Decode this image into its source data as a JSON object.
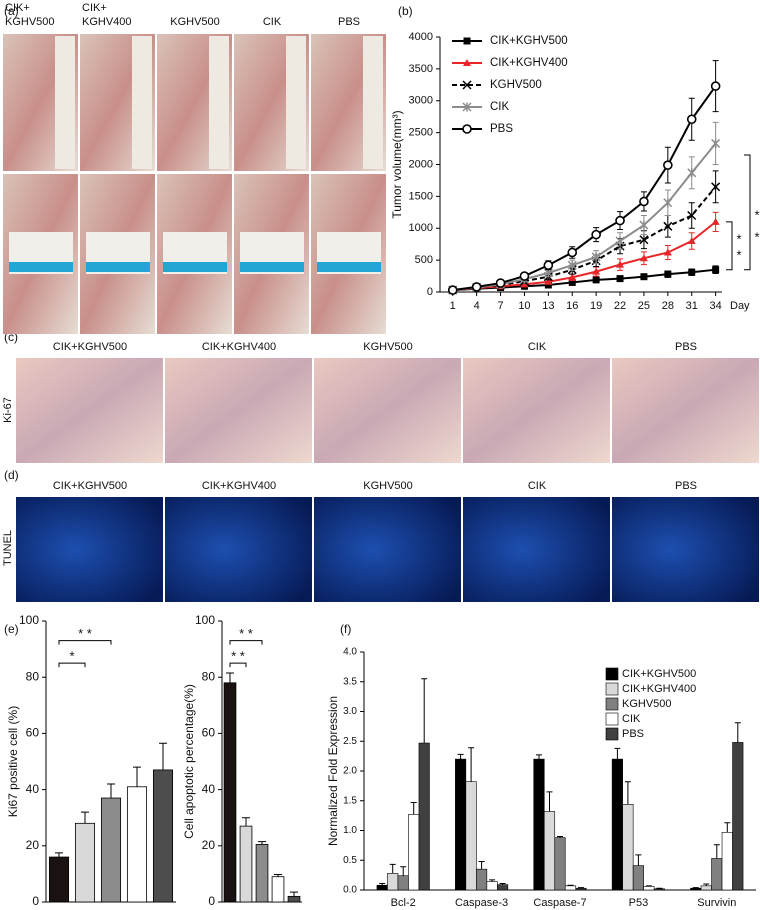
{
  "figure_a": {
    "label": "(a)",
    "columns": [
      [
        "CIK+",
        "KGHV500"
      ],
      [
        "CIK+",
        "KGHV400"
      ],
      [
        "KGHV500"
      ],
      [
        "CIK"
      ],
      [
        "PBS"
      ]
    ]
  },
  "figure_c": {
    "label": "(c)",
    "row_label": "Ki-67",
    "columns": [
      "CIK+KGHV500",
      "CIK+KGHV400",
      "KGHV500",
      "CIK",
      "PBS"
    ]
  },
  "figure_d": {
    "label": "(d)",
    "row_label": "TUNEL",
    "columns": [
      "CIK+KGHV500",
      "CIK+KGHV400",
      "KGHV500",
      "CIK",
      "PBS"
    ]
  },
  "chart_data": [
    {
      "type": "line",
      "label": "(b)",
      "ylabel": "Tumor volume(mm³)",
      "xlabel": "Day",
      "x": [
        1,
        4,
        7,
        10,
        13,
        16,
        19,
        22,
        25,
        28,
        31,
        34
      ],
      "xlim": [
        -0.6,
        34.8
      ],
      "xticks": [
        1,
        4,
        7,
        10,
        13,
        16,
        19,
        22,
        25,
        28,
        31,
        34
      ],
      "ylim": [
        0,
        4000
      ],
      "yticks": [
        0,
        500,
        1000,
        1500,
        2000,
        2500,
        3000,
        3500,
        4000
      ],
      "grid": false,
      "legend": "upper left",
      "series": [
        {
          "name": "CIK+KGHV500",
          "color": "#000000",
          "marker": "square",
          "line_style": "solid",
          "values": [
            30,
            50,
            70,
            90,
            110,
            150,
            190,
            210,
            240,
            280,
            310,
            350
          ],
          "errors": [
            10,
            15,
            15,
            20,
            25,
            30,
            35,
            40,
            40,
            50,
            50,
            60
          ]
        },
        {
          "name": "CIK+KGHV400",
          "color": "#e8262a",
          "marker": "triangle",
          "line_style": "solid",
          "values": [
            30,
            60,
            90,
            120,
            160,
            230,
            320,
            430,
            530,
            620,
            800,
            1100
          ],
          "errors": [
            10,
            15,
            20,
            25,
            35,
            50,
            70,
            90,
            100,
            110,
            130,
            150
          ]
        },
        {
          "name": "KGHV500",
          "color": "#000000",
          "marker": "cross",
          "line_style": "dashed",
          "values": [
            30,
            70,
            110,
            170,
            240,
            350,
            490,
            720,
            820,
            1030,
            1200,
            1650
          ],
          "errors": [
            10,
            15,
            25,
            35,
            50,
            70,
            90,
            120,
            140,
            170,
            200,
            250
          ]
        },
        {
          "name": "CIK",
          "color": "#8c8c8c",
          "marker": "star",
          "line_style": "solid",
          "values": [
            30,
            70,
            120,
            200,
            300,
            420,
            550,
            800,
            1050,
            1400,
            1870,
            2330
          ],
          "errors": [
            10,
            20,
            25,
            40,
            60,
            80,
            100,
            130,
            150,
            200,
            250,
            330
          ]
        },
        {
          "name": "PBS",
          "color": "#000000",
          "marker": "circle",
          "line_style": "solid",
          "values": [
            30,
            80,
            140,
            250,
            420,
            620,
            900,
            1120,
            1420,
            1990,
            2710,
            3230
          ],
          "errors": [
            10,
            20,
            30,
            40,
            70,
            90,
            110,
            140,
            150,
            280,
            330,
            400
          ]
        }
      ],
      "annotations": [
        "*",
        "*",
        "*",
        "*"
      ]
    },
    {
      "type": "bar",
      "label": "(e)",
      "ylabel": "Ki67 positive cell (%)",
      "categories": [
        null,
        null,
        null,
        null,
        null
      ],
      "values": [
        16,
        28,
        37,
        41,
        47
      ],
      "errors": [
        1.5,
        4,
        5,
        7,
        9.5
      ],
      "colors": [
        "#1a1210",
        "#d9d9d9",
        "#8c8c8c",
        "#ffffff",
        "#4d4d4d"
      ],
      "ylim": [
        0,
        100
      ],
      "yticks": [
        0,
        20,
        40,
        60,
        80,
        100
      ],
      "grid": false,
      "annotations": [
        "* *",
        "*"
      ]
    },
    {
      "type": "bar",
      "ylabel": "Cell apoptotic percentage(%)",
      "categories": [
        null,
        null,
        null,
        null,
        null
      ],
      "values": [
        78,
        27,
        20.5,
        9,
        2
      ],
      "errors": [
        3.5,
        3,
        1,
        0.8,
        1.5
      ],
      "colors": [
        "#1a1210",
        "#d9d9d9",
        "#8c8c8c",
        "#ffffff",
        "#4d4d4d"
      ],
      "ylim": [
        0,
        100
      ],
      "yticks": [
        0,
        20,
        40,
        60,
        80,
        100
      ],
      "grid": false,
      "annotations": [
        "* *",
        "* *"
      ]
    },
    {
      "type": "grouped_bar",
      "label": "(f)",
      "ylabel": "Normalized Fold Expression",
      "categories": [
        "Bcl-2",
        "Caspase-3",
        "Caspase-7",
        "P53",
        "Survivin"
      ],
      "ylim": [
        0,
        4
      ],
      "grid": false,
      "legend": "upper right",
      "yticks": [
        {
          "value": 0,
          "label": "0.0"
        },
        {
          "value": 0.5,
          "label": "0.5"
        },
        {
          "value": 1,
          "label": "1.0"
        },
        {
          "value": 1.5,
          "label": "1.5"
        },
        {
          "value": 2,
          "label": "2.0"
        },
        {
          "value": 2.5,
          "label": "2.5"
        },
        {
          "value": 3,
          "label": "3.0"
        },
        {
          "value": 3.5,
          "label": "3.5"
        },
        {
          "value": 4,
          "label": "4.0"
        }
      ],
      "series": [
        {
          "name": "CIK+KGHV500",
          "color": "#000000",
          "values": [
            0.08,
            2.2,
            2.2,
            2.2,
            0.03
          ],
          "errors": [
            0.03,
            0.08,
            0.07,
            0.18,
            0.01
          ]
        },
        {
          "name": "CIK+KGHV400",
          "color": "#d9d9d9",
          "values": [
            0.28,
            1.82,
            1.32,
            1.44,
            0.07
          ],
          "errors": [
            0.15,
            0.57,
            0.33,
            0.38,
            0.03
          ]
        },
        {
          "name": "KGHV500",
          "color": "#808080",
          "values": [
            0.24,
            0.35,
            0.88,
            0.41,
            0.53
          ],
          "errors": [
            0.15,
            0.13,
            0.02,
            0.18,
            0.23
          ]
        },
        {
          "name": "CIK",
          "color": "#ffffff",
          "values": [
            1.27,
            0.14,
            0.07,
            0.06,
            0.97
          ],
          "errors": [
            0.2,
            0.03,
            0.01,
            0.01,
            0.16
          ]
        },
        {
          "name": "PBS",
          "color": "#404040",
          "values": [
            2.47,
            0.09,
            0.03,
            0.02,
            2.48
          ],
          "errors": [
            1.08,
            0.02,
            0.01,
            0.01,
            0.33
          ]
        }
      ]
    }
  ]
}
